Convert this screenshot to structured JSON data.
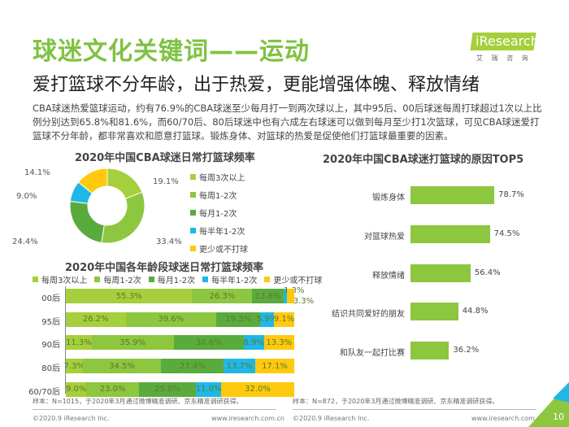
{
  "header": {
    "title": "球迷文化关键词——运动",
    "subtitle": "爱打篮球不分年龄，出于热爱，更能增强体魄、释放情绪",
    "logo_text": "iResearch",
    "logo_sub": "艾 瑞 咨 询"
  },
  "body_text": "CBA球迷热爱篮球运动，约有76.9%的CBA球迷至少每月打一到两次球以上，其中95后、00后球迷每周打球超过1次以上比例分别达到65.8%和81.6%，而60/70后、80后球迷中也有六成左右球迷可以做到每月至少打1次篮球，可见CBA球迷爱打篮球不分年龄，都非常喜欢和愿意打篮球。锻炼身体、对篮球的热爱是促使他们打篮球最重要的因素。",
  "colors": {
    "brand": "#7fc241",
    "c1": "#a5cf3c",
    "c2": "#8dc63f",
    "c3": "#5aab3d",
    "c4": "#1fb8e6",
    "c5": "#ffc90e"
  },
  "chart_data": [
    {
      "type": "pie",
      "title": "2020年中国CBA球迷日常打篮球频率",
      "categories": [
        "每周3次以上",
        "每周1-2次",
        "每月1-2次",
        "每半年1-2次",
        "更少或不打球"
      ],
      "values": [
        19.1,
        33.4,
        24.4,
        9.0,
        14.1
      ],
      "labels": [
        "19.1%",
        "33.4%",
        "24.4%",
        "9.0%",
        "14.1%"
      ],
      "legend": "right"
    },
    {
      "type": "bar",
      "stacked": true,
      "orientation": "horizontal",
      "title": "2020年中国各年龄段球迷日常打篮球频率",
      "categories": [
        "00后",
        "95后",
        "90后",
        "80后",
        "60/70后"
      ],
      "series": [
        {
          "name": "每周3次以上",
          "values": [
            55.3,
            26.2,
            11.3,
            7.3,
            9.0
          ]
        },
        {
          "name": "每周1-2次",
          "values": [
            26.3,
            39.6,
            35.9,
            34.5,
            23.0
          ]
        },
        {
          "name": "每月1-2次",
          "values": [
            13.8,
            19.3,
            30.6,
            27.4,
            25.0
          ]
        },
        {
          "name": "每半年1-2次",
          "values": [
            1.3,
            5.9,
            8.9,
            13.7,
            11.0
          ]
        },
        {
          "name": "更少或不打球",
          "values": [
            3.3,
            9.1,
            13.3,
            17.1,
            32.0
          ]
        }
      ],
      "legend": "top"
    },
    {
      "type": "bar",
      "orientation": "horizontal",
      "title": "2020年中国CBA球迷打篮球的原因TOP5",
      "categories": [
        "锻炼身体",
        "对篮球热爱",
        "释放情绪",
        "结识共同爱好的朋友",
        "和队友一起打比赛"
      ],
      "values": [
        78.7,
        74.5,
        56.4,
        44.8,
        36.2
      ]
    }
  ],
  "notes": {
    "left": "样本：N=1015，于2020年3月通过微博精准调研、京东精准调研获得。",
    "right": "样本：N=872，于2020年3月通过微博精准调研、京东精准调研获得。"
  },
  "footer": {
    "copyright": "©2020.9 iResearch Inc.",
    "url": "www.iresearch.com.cn",
    "page": "10"
  }
}
